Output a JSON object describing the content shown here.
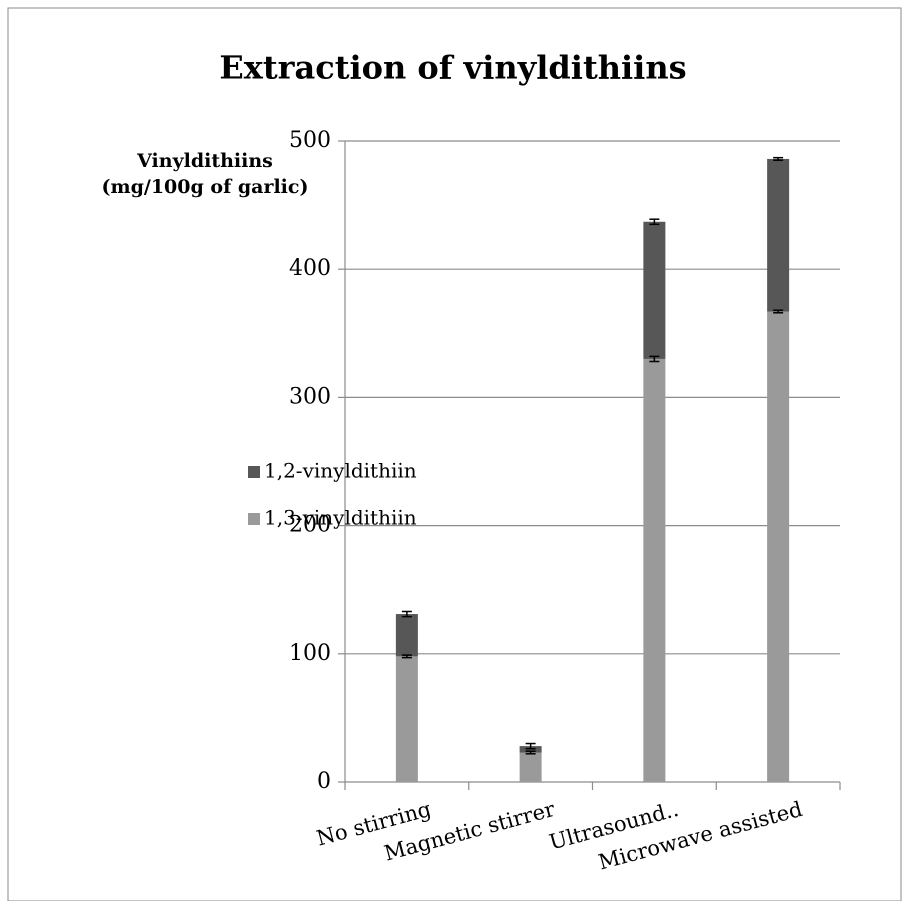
{
  "chart_data": {
    "type": "stacked_bar",
    "title": "Extraction of vinyldithiins",
    "y_label": [
      "Vinyldithiins",
      "(mg/100g of garlic)"
    ],
    "categories": [
      "No stirring",
      "Magnetic stirrer",
      "Ultrasound..",
      "Microwave assisted"
    ],
    "series": [
      {
        "name": "1,3-vinyldithiin",
        "color": "#9a9a9a",
        "values": [
          98,
          23,
          330,
          367
        ],
        "errors": [
          1,
          1,
          2,
          1
        ]
      },
      {
        "name": "1,2-vinyldithiin",
        "color": "#575757",
        "values": [
          33,
          5,
          107,
          119
        ],
        "errors": [
          2,
          2,
          2,
          1
        ]
      }
    ],
    "ylim": [
      0,
      500
    ],
    "yticks": [
      0,
      100,
      200,
      300,
      400,
      500
    ],
    "grid": true,
    "legend": "left"
  }
}
